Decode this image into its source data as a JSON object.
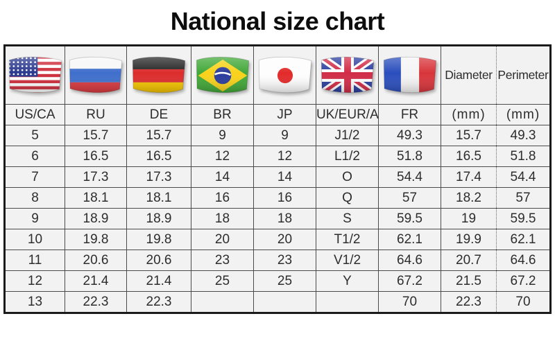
{
  "title": "National size chart",
  "chart_data": {
    "type": "table",
    "title": "National size chart",
    "columns": [
      {
        "key": "us_ca",
        "label": "US/CA",
        "flag": "us-flag"
      },
      {
        "key": "ru",
        "label": "RU",
        "flag": "ru-flag"
      },
      {
        "key": "de",
        "label": "DE",
        "flag": "de-flag"
      },
      {
        "key": "br",
        "label": "BR",
        "flag": "br-flag"
      },
      {
        "key": "jp",
        "label": "JP",
        "flag": "jp-flag"
      },
      {
        "key": "uk_eur_au",
        "label": "UK/EUR/AU",
        "flag": "uk-flag"
      },
      {
        "key": "fr",
        "label": "FR",
        "flag": "fr-flag"
      },
      {
        "key": "diameter",
        "label": "(mm)",
        "header": "Diameter"
      },
      {
        "key": "perimeter",
        "label": "(mm)",
        "header": "Perimeter"
      }
    ],
    "rows": [
      [
        "5",
        "15.7",
        "15.7",
        "9",
        "9",
        "J1/2",
        "49.3",
        "15.7",
        "49.3"
      ],
      [
        "6",
        "16.5",
        "16.5",
        "12",
        "12",
        "L1/2",
        "51.8",
        "16.5",
        "51.8"
      ],
      [
        "7",
        "17.3",
        "17.3",
        "14",
        "14",
        "O",
        "54.4",
        "17.4",
        "54.4"
      ],
      [
        "8",
        "18.1",
        "18.1",
        "16",
        "16",
        "Q",
        "57",
        "18.2",
        "57"
      ],
      [
        "9",
        "18.9",
        "18.9",
        "18",
        "18",
        "S",
        "59.5",
        "19",
        "59.5"
      ],
      [
        "10",
        "19.8",
        "19.8",
        "20",
        "20",
        "T1/2",
        "62.1",
        "19.9",
        "62.1"
      ],
      [
        "11",
        "20.6",
        "20.6",
        "23",
        "23",
        "V1/2",
        "64.6",
        "20.7",
        "64.6"
      ],
      [
        "12",
        "21.4",
        "21.4",
        "25",
        "25",
        "Y",
        "67.2",
        "21.5",
        "67.2"
      ],
      [
        "13",
        "22.3",
        "22.3",
        "",
        "",
        "",
        "70",
        "22.3",
        "70"
      ]
    ]
  },
  "colors": {
    "page_background": "#ffffff",
    "cell_background": "#f2f2f2",
    "grid_line": "#4a4a4a",
    "outer_border": "#1b1b1b",
    "text": "#2d2d2d",
    "title_text": "#0d0d0d"
  }
}
